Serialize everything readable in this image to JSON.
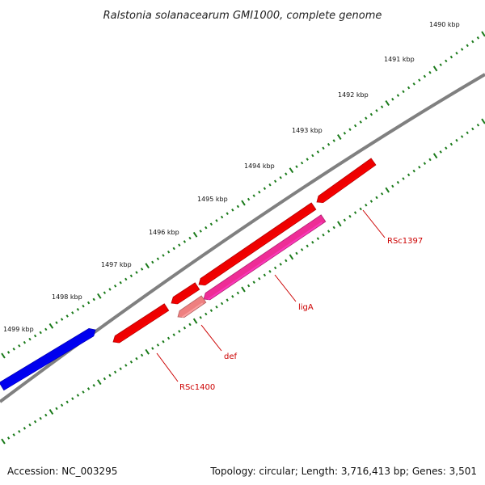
{
  "title": "Ralstonia solanacearum GMI1000, complete genome",
  "footer": {
    "accession": "Accession: NC_003295",
    "summary": "Topology: circular; Length: 3,716,413 bp; Genes: 3,501"
  },
  "colors": {
    "backbone": "#808080",
    "tick": "#1a7a1a",
    "label": "#cc0000",
    "forward_gene": "#0000ee",
    "reverse_gene": "#ee0000",
    "lig_gene": "#ee2d96",
    "def_gene": "#ee8080"
  },
  "scale_labels": [
    {
      "text": "1490 kbp"
    },
    {
      "text": "1491 kbp"
    },
    {
      "text": "1492 kbp"
    },
    {
      "text": "1493 kbp"
    },
    {
      "text": "1494 kbp"
    },
    {
      "text": "1495 kbp"
    },
    {
      "text": "1496 kbp"
    },
    {
      "text": "1497 kbp"
    },
    {
      "text": "1498 kbp"
    },
    {
      "text": "1499 kbp"
    }
  ],
  "genes": [
    {
      "name": "RSc1397",
      "strand": "reverse",
      "color": "#ee0000"
    },
    {
      "name": "ligA",
      "strand": "reverse",
      "color": "#ee2d96"
    },
    {
      "name": "def",
      "strand": "reverse",
      "color": "#ee8080"
    },
    {
      "name": "RSc1400",
      "strand": "reverse",
      "color": "#ee0000"
    },
    {
      "name": "",
      "strand": "forward",
      "color": "#0000ee"
    }
  ]
}
